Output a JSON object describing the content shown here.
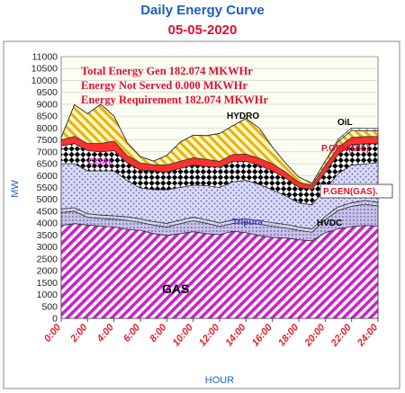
{
  "title": "Daily Energy Curve",
  "subtitle": "05-05-2020",
  "info": [
    "Total Energy Gen 182.074 MKWHr",
    "Energy Not Served   0.000 MKWHr",
    "Energy Requirement     182.074 MKWHr"
  ],
  "colors": {
    "gas": "#cc22cc",
    "hvdc": "#b0a8d8",
    "tripura": "#c4c4e8",
    "pgen_gas": "#8a8adf",
    "coal": "#000000",
    "pgen_oil": "#ff3030",
    "hydro": "#e8c020",
    "oil": "#f0f0f0",
    "plot_bg": "#fafff0",
    "text_red": "#e0102f",
    "title_blue": "#1f5fbf"
  },
  "chart_data": {
    "type": "area",
    "stacked": true,
    "title": "Daily Energy Curve",
    "subtitle": "05-05-2020",
    "xlabel": "HOUR",
    "ylabel": "MW",
    "ylim": [
      0,
      11000
    ],
    "yticks": [
      0,
      500,
      1000,
      1500,
      2000,
      2500,
      3000,
      3500,
      4000,
      4500,
      5000,
      5500,
      6000,
      6500,
      7000,
      7500,
      8000,
      8500,
      9000,
      9500,
      10000,
      10500,
      11000
    ],
    "x": [
      0,
      1,
      2,
      3,
      4,
      5,
      6,
      7,
      8,
      9,
      10,
      11,
      12,
      13,
      14,
      15,
      16,
      17,
      18,
      19,
      20,
      21,
      22,
      23,
      24
    ],
    "xtick_labels": [
      "0:00",
      "2:00",
      "4:00",
      "6:00",
      "8:00",
      "10:00",
      "12:00",
      "14:00",
      "16:00",
      "18:00",
      "20:00",
      "22:00",
      "24:00"
    ],
    "grid": true,
    "series": [
      {
        "name": "GAS",
        "values": [
          3900,
          3980,
          3920,
          3880,
          3840,
          3740,
          3700,
          3560,
          3480,
          3560,
          3640,
          3560,
          3520,
          3660,
          3600,
          3480,
          3400,
          3380,
          3300,
          3260,
          3600,
          3760,
          3860,
          3900,
          3880
        ]
      },
      {
        "name": "HVDC",
        "values": [
          550,
          520,
          330,
          320,
          330,
          380,
          330,
          360,
          360,
          420,
          460,
          440,
          340,
          330,
          430,
          480,
          470,
          420,
          400,
          360,
          540,
          780,
          850,
          900,
          850
        ]
      },
      {
        "name": "Tripura",
        "values": [
          150,
          150,
          150,
          140,
          140,
          150,
          150,
          150,
          150,
          150,
          150,
          150,
          150,
          150,
          150,
          150,
          150,
          150,
          140,
          140,
          150,
          150,
          150,
          150,
          150
        ]
      },
      {
        "name": "P.GEN(GAS).",
        "values": [
          1900,
          1850,
          1800,
          1860,
          1890,
          1520,
          1300,
          1340,
          1410,
          1370,
          1350,
          1430,
          1490,
          1600,
          1620,
          1520,
          1380,
          1200,
          1020,
          1010,
          1130,
          1410,
          1590,
          1540,
          1670
        ]
      },
      {
        "name": "COAL",
        "values": [
          750,
          850,
          850,
          800,
          850,
          750,
          750,
          800,
          750,
          800,
          850,
          800,
          850,
          850,
          800,
          800,
          800,
          750,
          650,
          650,
          700,
          800,
          850,
          850,
          800
        ]
      },
      {
        "name": "P.GEN(OIL)",
        "values": [
          250,
          300,
          300,
          350,
          400,
          300,
          300,
          250,
          300,
          300,
          300,
          300,
          250,
          300,
          300,
          300,
          300,
          250,
          200,
          180,
          300,
          300,
          300,
          300,
          300
        ]
      },
      {
        "name": "HYDRO",
        "values": [
          100,
          1330,
          1250,
          1650,
          1050,
          550,
          270,
          150,
          400,
          800,
          950,
          1000,
          1170,
          1210,
          1500,
          1270,
          700,
          370,
          230,
          80,
          180,
          240,
          300,
          240,
          230
        ]
      },
      {
        "name": "OIL",
        "values": [
          0,
          0,
          0,
          0,
          0,
          0,
          0,
          0,
          0,
          0,
          0,
          0,
          0,
          0,
          0,
          0,
          0,
          0,
          0,
          0,
          0,
          100,
          100,
          100,
          100
        ]
      }
    ],
    "labels": [
      "GAS",
      "HVDC",
      "Tripura",
      "P.GEN(GAS).",
      "COAL",
      "P.GEN(OIL)",
      "HYDRO",
      "OiL"
    ]
  }
}
